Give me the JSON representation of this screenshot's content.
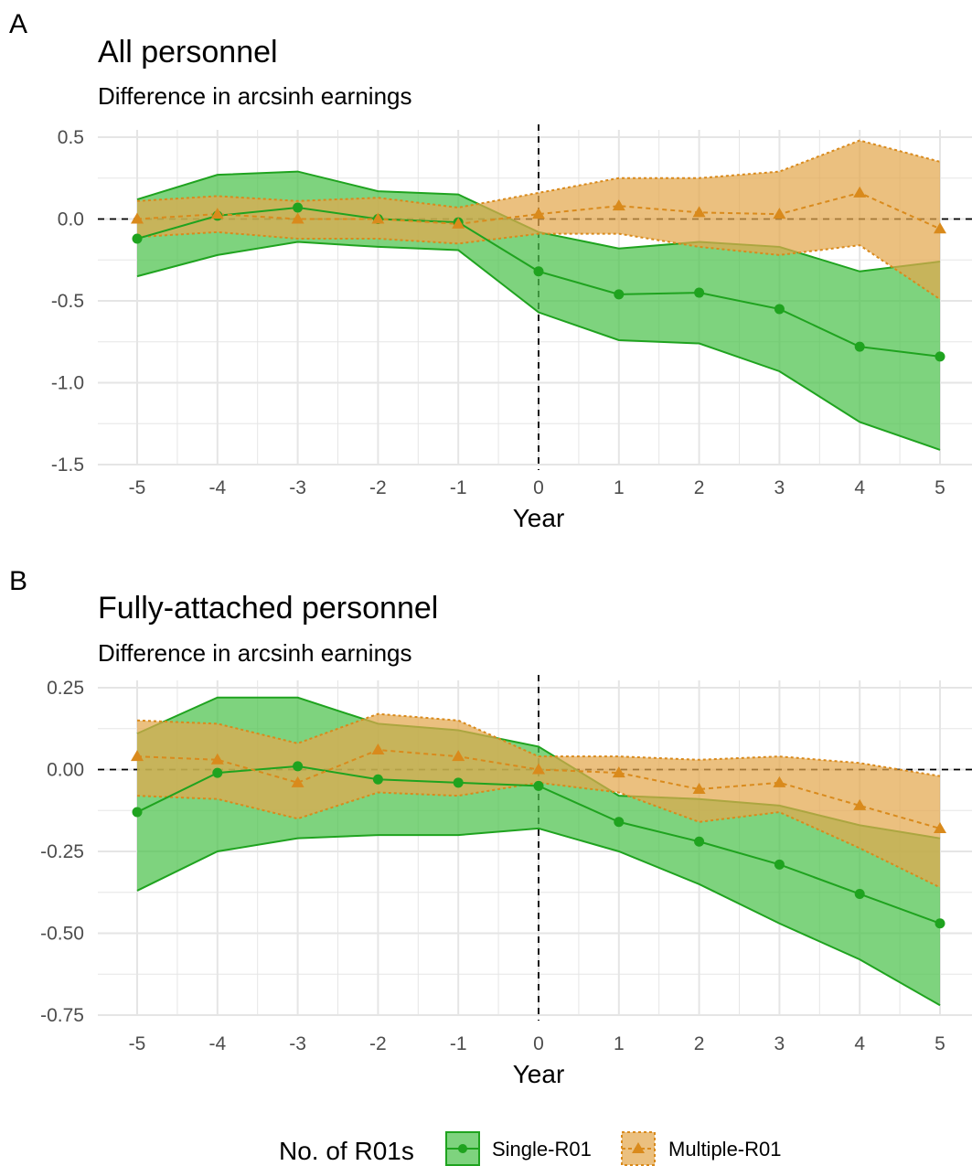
{
  "colors": {
    "single": "#1fa31f",
    "single_fill": "#4cc24c",
    "multiple": "#d98a1c",
    "multiple_fill": "#e3a84e",
    "grid": "#e5e5e5",
    "tick_text": "#4d4d4d"
  },
  "legend": {
    "title": "No. of R01s",
    "items": [
      {
        "label": "Single-R01",
        "marker": "circle",
        "line": "solid"
      },
      {
        "label": "Multiple-R01",
        "marker": "triangle",
        "line": "dotted"
      }
    ]
  },
  "chart_data": [
    {
      "panel": "A",
      "type": "line",
      "title": "All personnel",
      "subtitle": "Difference in arcsinh earnings",
      "xlabel": "Year",
      "ylabel": "",
      "x": [
        -5,
        -4,
        -3,
        -2,
        -1,
        0,
        1,
        2,
        3,
        4,
        5
      ],
      "x_tick_labels": [
        "-5",
        "-4",
        "-3",
        "-2",
        "-1",
        "0",
        "1",
        "2",
        "3",
        "4",
        "5"
      ],
      "ylim": [
        -1.5,
        0.5
      ],
      "y_ticks": [
        0.5,
        0.0,
        -0.5,
        -1.0,
        -1.5
      ],
      "y_tick_labels": [
        "0.5",
        "0.0",
        "-0.5",
        "-1.0",
        "-1.5"
      ],
      "reference_lines": {
        "x": 0,
        "y": 0
      },
      "grid": true,
      "series": [
        {
          "name": "Single-R01",
          "values": [
            -0.12,
            0.02,
            0.07,
            0.0,
            -0.02,
            -0.32,
            -0.46,
            -0.45,
            -0.55,
            -0.78,
            -0.84
          ],
          "ci_lower": [
            -0.35,
            -0.22,
            -0.14,
            -0.17,
            -0.19,
            -0.57,
            -0.74,
            -0.76,
            -0.93,
            -1.24,
            -1.41
          ],
          "ci_upper": [
            0.12,
            0.27,
            0.29,
            0.17,
            0.15,
            -0.08,
            -0.18,
            -0.14,
            -0.17,
            -0.32,
            -0.26
          ]
        },
        {
          "name": "Multiple-R01",
          "values": [
            0.0,
            0.03,
            0.0,
            0.0,
            -0.03,
            0.03,
            0.08,
            0.04,
            0.03,
            0.16,
            -0.06
          ],
          "ci_lower": [
            -0.11,
            -0.08,
            -0.12,
            -0.12,
            -0.15,
            -0.09,
            -0.09,
            -0.17,
            -0.22,
            -0.16,
            -0.49
          ],
          "ci_upper": [
            0.11,
            0.14,
            0.11,
            0.13,
            0.07,
            0.16,
            0.25,
            0.25,
            0.29,
            0.48,
            0.35
          ]
        }
      ]
    },
    {
      "panel": "B",
      "type": "line",
      "title": "Fully-attached personnel",
      "subtitle": "Difference in arcsinh earnings",
      "xlabel": "Year",
      "ylabel": "",
      "x": [
        -5,
        -4,
        -3,
        -2,
        -1,
        0,
        1,
        2,
        3,
        4,
        5
      ],
      "x_tick_labels": [
        "-5",
        "-4",
        "-3",
        "-2",
        "-1",
        "0",
        "1",
        "2",
        "3",
        "4",
        "5"
      ],
      "ylim": [
        -0.75,
        0.25
      ],
      "y_ticks": [
        0.25,
        0.0,
        -0.25,
        -0.5,
        -0.75
      ],
      "y_tick_labels": [
        "0.25",
        "0.00",
        "-0.25",
        "-0.50",
        "-0.75"
      ],
      "reference_lines": {
        "x": 0,
        "y": 0
      },
      "grid": true,
      "series": [
        {
          "name": "Single-R01",
          "values": [
            -0.13,
            -0.01,
            0.01,
            -0.03,
            -0.04,
            -0.05,
            -0.16,
            -0.22,
            -0.29,
            -0.38,
            -0.47
          ],
          "ci_lower": [
            -0.37,
            -0.25,
            -0.21,
            -0.2,
            -0.2,
            -0.18,
            -0.25,
            -0.35,
            -0.47,
            -0.58,
            -0.72
          ],
          "ci_upper": [
            0.11,
            0.22,
            0.22,
            0.14,
            0.12,
            0.07,
            -0.08,
            -0.09,
            -0.11,
            -0.17,
            -0.21
          ]
        },
        {
          "name": "Multiple-R01",
          "values": [
            0.04,
            0.03,
            -0.04,
            0.06,
            0.04,
            0.0,
            -0.01,
            -0.06,
            -0.04,
            -0.11,
            -0.18
          ],
          "ci_lower": [
            -0.08,
            -0.09,
            -0.15,
            -0.07,
            -0.08,
            -0.04,
            -0.07,
            -0.16,
            -0.13,
            -0.24,
            -0.36
          ],
          "ci_upper": [
            0.15,
            0.14,
            0.08,
            0.17,
            0.15,
            0.04,
            0.04,
            0.03,
            0.04,
            0.02,
            -0.02
          ]
        }
      ]
    }
  ]
}
